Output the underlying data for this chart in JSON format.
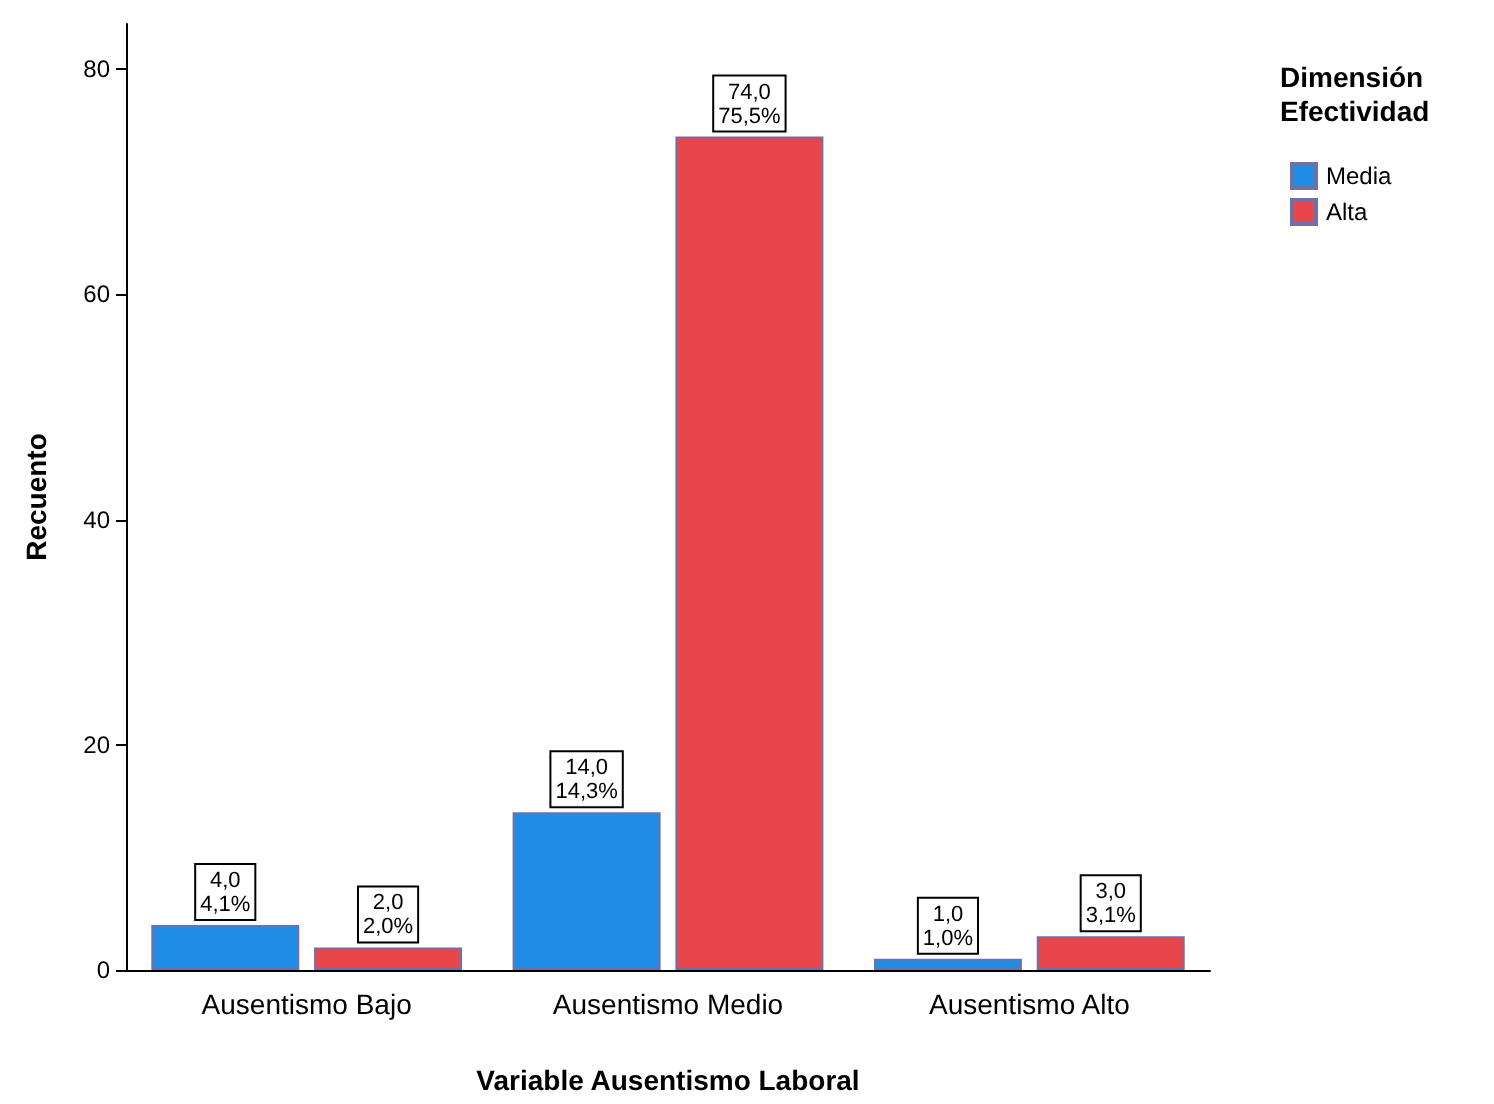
{
  "chart_data": {
    "type": "bar",
    "xlabel": "Variable Ausentismo Laboral",
    "ylabel": "Recuento",
    "legend_title": "Dimensión\nEfectividad",
    "categories": [
      "Ausentismo Bajo",
      "Ausentismo Medio",
      "Ausentismo Alto"
    ],
    "series": [
      {
        "name": "Media",
        "color": "#1f8ce6",
        "values": [
          4,
          14,
          1
        ],
        "value_labels": [
          "4,0\n4,1%",
          "14,0\n14,3%",
          "1,0\n1,0%"
        ]
      },
      {
        "name": "Alta",
        "color": "#e8464b",
        "values": [
          2,
          74,
          3
        ],
        "value_labels": [
          "2,0\n2,0%",
          "74,0\n75,5%",
          "3,0\n3,1%"
        ]
      }
    ],
    "ylim": [
      0,
      84
    ],
    "yticks": [
      0,
      20,
      40,
      60,
      80
    ],
    "grid": false,
    "legend": "top right"
  }
}
